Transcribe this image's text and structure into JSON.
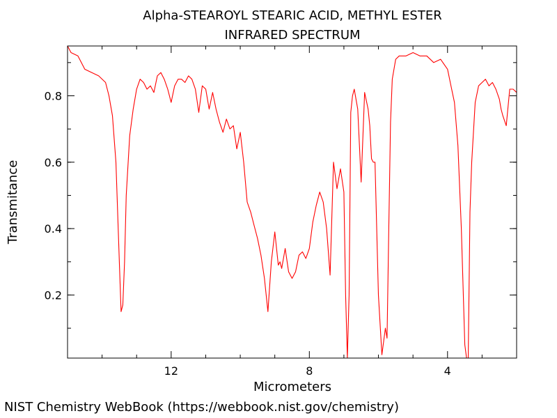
{
  "chart_data": {
    "type": "line",
    "title": "Alpha-STEAROYL STEARIC ACID, METHYL ESTER",
    "subtitle": "INFRARED SPECTRUM",
    "xlabel": "Micrometers",
    "ylabel": "Transmitance",
    "xlim": [
      15.0,
      2.0
    ],
    "ylim": [
      0.01,
      0.95
    ],
    "x_reversed": true,
    "grid": false,
    "line_color": "#ff0000",
    "xticks": [
      12,
      8,
      4
    ],
    "xtick_labels": [
      "12",
      "8",
      "4"
    ],
    "yticks": [
      0.2,
      0.4,
      0.6,
      0.8
    ],
    "ytick_labels": [
      "0.2",
      "0.4",
      "0.6",
      "0.8"
    ],
    "series": [
      {
        "x": [
          15.0,
          14.9,
          14.7,
          14.5,
          14.3,
          14.1,
          13.9,
          13.8,
          13.7,
          13.6,
          13.5,
          13.45,
          13.4,
          13.35,
          13.3,
          13.2,
          13.1,
          13.0,
          12.9,
          12.8,
          12.7,
          12.6,
          12.5,
          12.4,
          12.3,
          12.2,
          12.1,
          12.0,
          11.9,
          11.8,
          11.7,
          11.6,
          11.5,
          11.4,
          11.3,
          11.2,
          11.1,
          11.0,
          10.9,
          10.8,
          10.7,
          10.6,
          10.5,
          10.4,
          10.3,
          10.2,
          10.1,
          10.0,
          9.9,
          9.8,
          9.7,
          9.6,
          9.5,
          9.4,
          9.3,
          9.2,
          9.1,
          9.0,
          8.95,
          8.9,
          8.85,
          8.8,
          8.7,
          8.6,
          8.5,
          8.4,
          8.3,
          8.2,
          8.1,
          8.0,
          7.9,
          7.8,
          7.7,
          7.6,
          7.5,
          7.4,
          7.3,
          7.2,
          7.1,
          7.0,
          6.95,
          6.9,
          6.85,
          6.8,
          6.75,
          6.7,
          6.6,
          6.5,
          6.4,
          6.3,
          6.25,
          6.2,
          6.15,
          6.1,
          6.0,
          5.9,
          5.8,
          5.75,
          5.7,
          5.65,
          5.6,
          5.5,
          5.4,
          5.3,
          5.2,
          5.0,
          4.8,
          4.6,
          4.4,
          4.2,
          4.0,
          3.9,
          3.8,
          3.7,
          3.6,
          3.5,
          3.45,
          3.42,
          3.4,
          3.35,
          3.3,
          3.2,
          3.1,
          3.0,
          2.9,
          2.8,
          2.7,
          2.6,
          2.5,
          2.45,
          2.4,
          2.3,
          2.2,
          2.1,
          2.0
        ],
        "y": [
          0.95,
          0.93,
          0.92,
          0.88,
          0.87,
          0.86,
          0.84,
          0.8,
          0.74,
          0.6,
          0.3,
          0.15,
          0.17,
          0.3,
          0.5,
          0.68,
          0.76,
          0.82,
          0.85,
          0.84,
          0.82,
          0.83,
          0.81,
          0.86,
          0.87,
          0.85,
          0.82,
          0.78,
          0.83,
          0.85,
          0.85,
          0.84,
          0.86,
          0.85,
          0.82,
          0.75,
          0.83,
          0.82,
          0.76,
          0.81,
          0.76,
          0.72,
          0.69,
          0.73,
          0.7,
          0.71,
          0.64,
          0.69,
          0.6,
          0.48,
          0.45,
          0.41,
          0.37,
          0.32,
          0.25,
          0.15,
          0.3,
          0.39,
          0.34,
          0.29,
          0.3,
          0.28,
          0.34,
          0.27,
          0.25,
          0.27,
          0.32,
          0.33,
          0.31,
          0.34,
          0.42,
          0.47,
          0.51,
          0.48,
          0.4,
          0.26,
          0.6,
          0.52,
          0.58,
          0.51,
          0.2,
          0.01,
          0.2,
          0.75,
          0.8,
          0.82,
          0.76,
          0.54,
          0.81,
          0.76,
          0.71,
          0.61,
          0.6,
          0.6,
          0.2,
          0.02,
          0.1,
          0.07,
          0.4,
          0.72,
          0.85,
          0.91,
          0.92,
          0.92,
          0.92,
          0.93,
          0.92,
          0.92,
          0.9,
          0.91,
          0.88,
          0.83,
          0.78,
          0.65,
          0.4,
          0.05,
          0.01,
          0.01,
          0.01,
          0.45,
          0.6,
          0.78,
          0.83,
          0.84,
          0.85,
          0.83,
          0.84,
          0.82,
          0.79,
          0.76,
          0.74,
          0.71,
          0.82,
          0.82,
          0.81
        ]
      }
    ]
  },
  "footer": {
    "credit": "NIST Chemistry WebBook (https://webbook.nist.gov/chemistry)"
  }
}
